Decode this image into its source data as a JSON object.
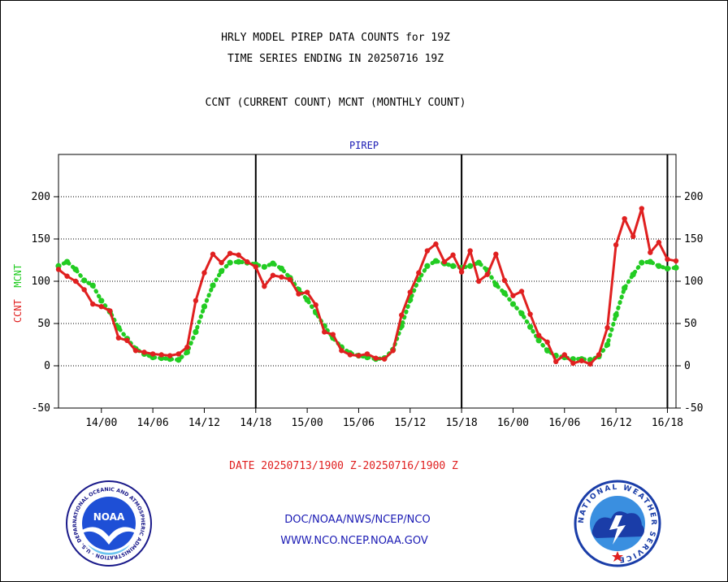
{
  "header": {
    "title_line1": "HRLY MODEL PIREP DATA COUNTS for 19Z",
    "title_line2": "TIME SERIES ENDING IN 20250716 19Z",
    "subtitle": "CCNT (CURRENT COUNT) MCNT (MONTHLY COUNT)"
  },
  "footer": {
    "date_range": "DATE 20250713/1900 Z-20250716/1900 Z",
    "org_line1": "DOC/NOAA/NWS/NCEP/NCO",
    "org_line2": "WWW.NCO.NCEP.NOAA.GOV"
  },
  "logos": {
    "noaa_text": "NOAA",
    "noaa_ring_text": "NATIONAL OCEANIC AND ATMOSPHERIC ADMINISTRATION · U.S. DEPARTMENT OF COMMERCE ·",
    "nws_ring_text": "NATIONAL WEATHER SERVICE"
  },
  "colors": {
    "ccnt": "#e02020",
    "mcnt": "#22cc22",
    "title_blue": "#1a1ab4",
    "grid": "#000000"
  },
  "chart_data": {
    "type": "line",
    "title": "PIREP",
    "ylabel_left_parts": [
      "CCNT",
      "MCNT"
    ],
    "ylim": [
      -50,
      250
    ],
    "yticks": [
      -50,
      0,
      50,
      100,
      150,
      200
    ],
    "xlim_hours": [
      0,
      72
    ],
    "x_tick_labels": [
      "14/00",
      "14/06",
      "14/12",
      "14/18",
      "15/00",
      "15/06",
      "15/12",
      "15/18",
      "16/00",
      "16/06",
      "16/12",
      "16/18"
    ],
    "x_tick_hours": [
      5,
      11,
      17,
      23,
      29,
      35,
      41,
      47,
      53,
      59,
      65,
      71
    ],
    "day_boundary_hours": [
      23,
      47,
      71
    ],
    "grid": "horizontal dotted",
    "series": [
      {
        "name": "CCNT",
        "values": [
          114,
          106,
          100,
          90,
          73,
          70,
          65,
          33,
          30,
          18,
          16,
          14,
          13,
          12,
          14,
          22,
          77,
          110,
          132,
          122,
          133,
          131,
          123,
          117,
          94,
          107,
          105,
          102,
          85,
          87,
          72,
          40,
          37,
          18,
          13,
          12,
          14,
          9,
          8,
          18,
          60,
          87,
          110,
          136,
          144,
          123,
          131,
          111,
          136,
          100,
          108,
          132,
          101,
          83,
          88,
          61,
          36,
          28,
          5,
          13,
          3,
          6,
          2,
          13,
          45,
          143,
          174,
          153,
          186,
          134,
          146,
          126,
          124
        ]
      },
      {
        "name": "MCNT",
        "values": [
          118,
          123,
          114,
          101,
          95,
          77,
          64,
          45,
          32,
          20,
          14,
          10,
          9,
          8,
          7,
          16,
          40,
          70,
          95,
          112,
          122,
          123,
          122,
          120,
          117,
          121,
          115,
          104,
          90,
          78,
          63,
          47,
          33,
          22,
          15,
          12,
          10,
          8,
          9,
          19,
          47,
          78,
          102,
          118,
          124,
          121,
          118,
          116,
          118,
          122,
          113,
          96,
          86,
          73,
          62,
          46,
          30,
          18,
          12,
          10,
          8,
          8,
          7,
          11,
          25,
          60,
          92,
          108,
          122,
          123,
          118,
          115,
          116
        ]
      }
    ]
  }
}
